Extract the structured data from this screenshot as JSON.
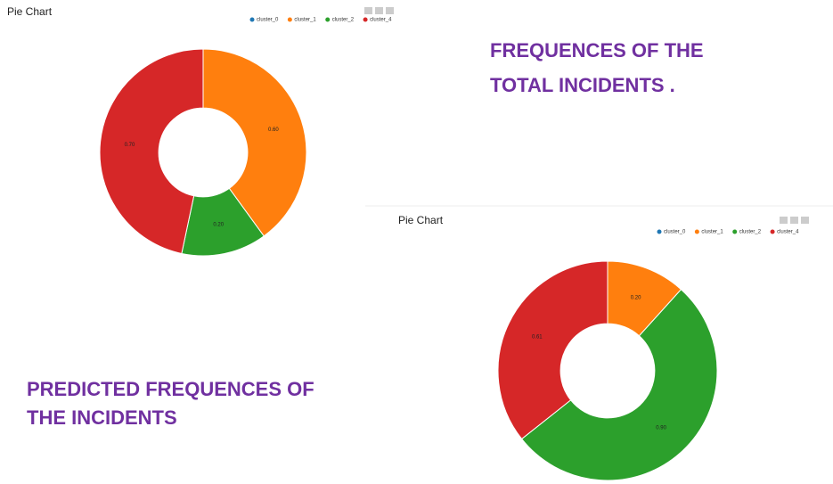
{
  "chart_data": [
    {
      "type": "pie",
      "title": "Pie Chart",
      "hole": true,
      "categories": [
        "cluster_0",
        "cluster_1",
        "cluster_2",
        "cluster_4"
      ],
      "colors": [
        "#1f77b4",
        "#ff7f0e",
        "#2ca02c",
        "#d62728"
      ],
      "values": [
        0,
        0.6,
        0.2,
        0.7
      ],
      "value_labels": [
        null,
        "0.60",
        "0.20",
        "0.70"
      ]
    },
    {
      "type": "pie",
      "title": "Pie Chart",
      "hole": true,
      "categories": [
        "cluster_0",
        "cluster_1",
        "cluster_2",
        "cluster_4"
      ],
      "colors": [
        "#1f77b4",
        "#ff7f0e",
        "#2ca02c",
        "#d62728"
      ],
      "values": [
        0,
        0.2,
        0.9,
        0.61
      ],
      "value_labels": [
        null,
        "0.20",
        "0.90",
        "0.61"
      ]
    }
  ],
  "annotations": [
    [
      "FREQUENCES OF THE",
      "TOTAL INCIDENTS ."
    ],
    [
      "PREDICTED FREQUENCES OF",
      "THE INCIDENTS"
    ]
  ]
}
